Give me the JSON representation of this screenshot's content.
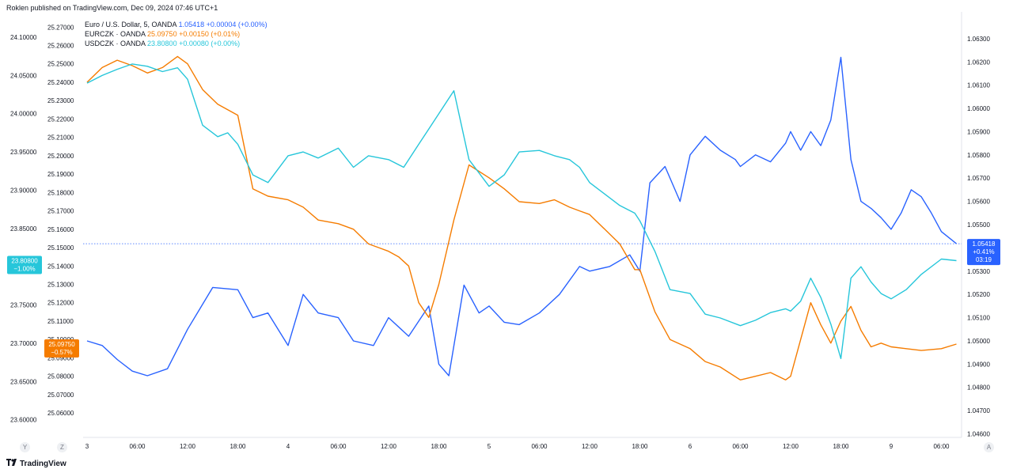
{
  "header": "Roklen published on TradingView.com, Dec 09, 2024 07:46 UTC+1",
  "legend": [
    {
      "name": "Euro / U.S. Dollar, 5, OANDA",
      "value": "1.05418",
      "change": "+0.00004 (+0.00%)",
      "color": "#2962ff"
    },
    {
      "name": "EURCZK · OANDA",
      "value": "25.09750",
      "change": "+0.00150 (+0.01%)",
      "color": "#f57c00"
    },
    {
      "name": "USDCZK · OANDA",
      "value": "23.80800",
      "change": "+0.00080 (+0.00%)",
      "color": "#26c6da"
    }
  ],
  "badges": {
    "usdczk": {
      "value": "23.80800",
      "pct": "−1.00%",
      "color": "#26c6da"
    },
    "eurczk": {
      "value": "25.09750",
      "pct": "−0.57%",
      "color": "#f57c00"
    },
    "eurusd": {
      "value": "1.05418",
      "pct": "+0.41%",
      "timer": "03:19",
      "color": "#2962ff"
    }
  },
  "footer": {
    "brand": "TradingView",
    "logo_icon": "tradingview-logo-icon"
  },
  "corner_buttons": [
    "Y",
    "Z",
    "A"
  ],
  "chart_data": {
    "type": "line",
    "x_ticks": [
      "3",
      "06:00",
      "12:00",
      "18:00",
      "4",
      "06:00",
      "12:00",
      "18:00",
      "5",
      "06:00",
      "12:00",
      "18:00",
      "6",
      "06:00",
      "12:00",
      "18:00",
      "9",
      "06:00"
    ],
    "axes": {
      "usdczk": {
        "side": "left-outer",
        "range": [
          23.58,
          24.13
        ],
        "ticks": [
          "24.10000",
          "24.05000",
          "24.00000",
          "23.95000",
          "23.90000",
          "23.85000",
          "23.80000",
          "23.75000",
          "23.70000",
          "23.65000",
          "23.60000"
        ]
      },
      "eurczk": {
        "side": "left-inner",
        "range": [
          25.048,
          25.277
        ],
        "ticks": [
          "25.27000",
          "25.26000",
          "25.25000",
          "25.24000",
          "25.23000",
          "25.22000",
          "25.21000",
          "25.20000",
          "25.19000",
          "25.18000",
          "25.17000",
          "25.16000",
          "25.15000",
          "25.14000",
          "25.13000",
          "25.12000",
          "25.11000",
          "25.10000",
          "25.09000",
          "25.08000",
          "25.07000",
          "25.06000"
        ]
      },
      "eurusd": {
        "side": "right",
        "range": [
          1.04595,
          1.06405
        ],
        "ticks": [
          "1.06300",
          "1.06200",
          "1.06100",
          "1.06000",
          "1.05900",
          "1.05800",
          "1.05700",
          "1.05600",
          "1.05500",
          "1.05400",
          "1.05300",
          "1.05200",
          "1.05100",
          "1.05000",
          "1.04900",
          "1.04800",
          "1.04700",
          "1.04600"
        ]
      }
    },
    "reference_line": {
      "series": "eurusd",
      "value": 1.05418
    },
    "series": [
      {
        "name": "Euro / U.S. Dollar, 5, OANDA",
        "axis": "eurusd",
        "color": "#2962ff",
        "x": [
          0,
          0.3,
          0.6,
          0.9,
          1.2,
          1.6,
          2.0,
          2.5,
          3.0,
          3.3,
          3.6,
          4.0,
          4.3,
          4.6,
          5.0,
          5.3,
          5.7,
          6.0,
          6.4,
          6.8,
          7.0,
          7.2,
          7.5,
          7.8,
          8.0,
          8.3,
          8.6,
          9.0,
          9.4,
          9.8,
          10.0,
          10.4,
          10.8,
          11.0,
          11.2,
          11.5,
          11.8,
          12.0,
          12.3,
          12.6,
          12.9,
          13.0,
          13.3,
          13.6,
          13.9,
          14.0,
          14.2,
          14.4,
          14.6,
          14.8,
          15.0,
          15.2,
          15.4,
          15.6,
          15.8,
          16.0,
          16.2,
          16.4,
          16.6,
          16.8,
          17.0,
          17.3
        ],
        "y": [
          1.05,
          1.0498,
          1.0492,
          1.0487,
          1.0485,
          1.0488,
          1.0505,
          1.0523,
          1.0522,
          1.051,
          1.0512,
          1.0498,
          1.052,
          1.0512,
          1.051,
          1.05,
          1.0498,
          1.051,
          1.0502,
          1.0515,
          1.049,
          1.0485,
          1.0524,
          1.0512,
          1.0515,
          1.0508,
          1.0507,
          1.0512,
          1.052,
          1.0532,
          1.053,
          1.0532,
          1.0537,
          1.053,
          1.0568,
          1.0575,
          1.056,
          1.058,
          1.0588,
          1.0582,
          1.0578,
          1.0575,
          1.058,
          1.0577,
          1.0585,
          1.059,
          1.0582,
          1.059,
          1.0584,
          1.0595,
          1.0622,
          1.0578,
          1.056,
          1.0557,
          1.0553,
          1.0548,
          1.0555,
          1.0565,
          1.0562,
          1.0555,
          1.0547,
          1.05418
        ]
      },
      {
        "name": "EURCZK · OANDA",
        "axis": "eurczk",
        "color": "#f57c00",
        "x": [
          0,
          0.3,
          0.6,
          0.9,
          1.2,
          1.5,
          1.8,
          2.0,
          2.3,
          2.6,
          2.8,
          3.0,
          3.3,
          3.6,
          4.0,
          4.3,
          4.6,
          5.0,
          5.3,
          5.6,
          5.8,
          6.0,
          6.2,
          6.4,
          6.6,
          6.8,
          7.0,
          7.3,
          7.6,
          8.0,
          8.3,
          8.6,
          9.0,
          9.3,
          9.6,
          9.8,
          10.0,
          10.3,
          10.6,
          10.9,
          11.0,
          11.3,
          11.6,
          12.0,
          12.3,
          12.6,
          13.0,
          13.3,
          13.6,
          13.9,
          14.0,
          14.2,
          14.4,
          14.6,
          14.8,
          15.0,
          15.2,
          15.4,
          15.6,
          15.8,
          16.0,
          16.3,
          16.6,
          17.0,
          17.3
        ],
        "y": [
          25.24,
          25.248,
          25.252,
          25.249,
          25.245,
          25.248,
          25.254,
          25.25,
          25.236,
          25.228,
          25.225,
          25.222,
          25.182,
          25.178,
          25.176,
          25.172,
          25.165,
          25.163,
          25.16,
          25.152,
          25.15,
          25.148,
          25.145,
          25.14,
          25.12,
          25.112,
          25.13,
          25.165,
          25.195,
          25.188,
          25.182,
          25.175,
          25.174,
          25.176,
          25.172,
          25.17,
          25.168,
          25.16,
          25.152,
          25.138,
          25.138,
          25.115,
          25.1,
          25.095,
          25.088,
          25.085,
          25.078,
          25.08,
          25.082,
          25.078,
          25.08,
          25.1,
          25.12,
          25.108,
          25.098,
          25.11,
          25.118,
          25.105,
          25.096,
          25.098,
          25.096,
          25.095,
          25.094,
          25.095,
          25.0975
        ]
      },
      {
        "name": "USDCZK · OANDA",
        "axis": "usdczk",
        "color": "#26c6da",
        "x": [
          0,
          0.3,
          0.6,
          0.9,
          1.2,
          1.5,
          1.8,
          2.0,
          2.3,
          2.6,
          2.8,
          3.0,
          3.3,
          3.6,
          4.0,
          4.3,
          4.6,
          5.0,
          5.3,
          5.6,
          6.0,
          6.3,
          6.6,
          6.8,
          7.0,
          7.3,
          7.6,
          8.0,
          8.3,
          8.6,
          9.0,
          9.3,
          9.6,
          9.8,
          10.0,
          10.3,
          10.6,
          10.9,
          11.0,
          11.3,
          11.6,
          12.0,
          12.3,
          12.6,
          13.0,
          13.3,
          13.6,
          13.9,
          14.0,
          14.2,
          14.4,
          14.6,
          14.8,
          15.0,
          15.2,
          15.4,
          15.6,
          15.8,
          16.0,
          16.3,
          16.6,
          17.0,
          17.3
        ],
        "y": [
          24.04,
          24.05,
          24.058,
          24.065,
          24.062,
          24.055,
          24.06,
          24.045,
          23.985,
          23.97,
          23.975,
          23.96,
          23.92,
          23.91,
          23.945,
          23.95,
          23.942,
          23.955,
          23.93,
          23.945,
          23.94,
          23.93,
          23.96,
          23.98,
          24.0,
          24.03,
          23.94,
          23.905,
          23.92,
          23.95,
          23.952,
          23.945,
          23.94,
          23.93,
          23.91,
          23.895,
          23.88,
          23.87,
          23.86,
          23.82,
          23.77,
          23.765,
          23.738,
          23.733,
          23.723,
          23.73,
          23.74,
          23.745,
          23.742,
          23.755,
          23.785,
          23.76,
          23.725,
          23.68,
          23.785,
          23.8,
          23.78,
          23.765,
          23.758,
          23.77,
          23.79,
          23.81,
          23.808
        ]
      }
    ]
  }
}
